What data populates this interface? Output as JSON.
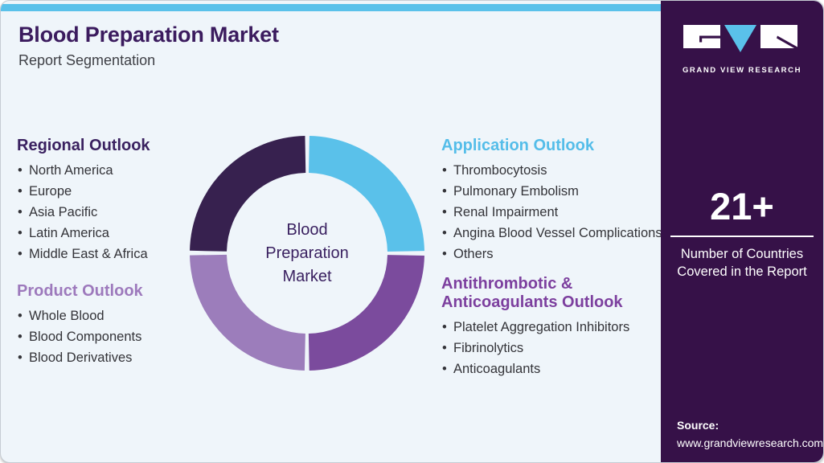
{
  "page": {
    "title": "Blood Preparation Market",
    "subtitle": "Report Segmentation"
  },
  "theme": {
    "card_bg": "#eff5fa",
    "topbar_color": "#5ac1ea",
    "sidebar_color": "#361148",
    "title_color": "#3b1b5e",
    "body_text_color": "#333338"
  },
  "sections": [
    {
      "id": "regional",
      "heading": "Regional Outlook",
      "color": "#3a2160",
      "items": [
        "North America",
        "Europe",
        "Asia Pacific",
        "Latin America",
        "Middle East & Africa"
      ]
    },
    {
      "id": "product",
      "heading": "Product Outlook",
      "color": "#9d79bc",
      "items": [
        "Whole Blood",
        "Blood Components",
        "Blood Derivatives"
      ]
    },
    {
      "id": "application",
      "heading": "Application Outlook",
      "color": "#54bde9",
      "items": [
        "Thrombocytosis",
        "Pulmonary Embolism",
        "Renal Impairment",
        "Angina Blood Vessel Complications",
        "Others"
      ]
    },
    {
      "id": "antithrombotic",
      "heading": "Antithrombotic &\nAnticoagulants Outlook",
      "color": "#7c3f9e",
      "items": [
        "Platelet Aggregation Inhibitors",
        "Fibrinolytics",
        "Anticoagulants"
      ]
    }
  ],
  "chart_data": {
    "type": "pie",
    "donut": true,
    "title": "Blood Preparation Market segmentation donut",
    "center_label": "Blood\nPreparation\nMarket",
    "center_label_color": "#3a2160",
    "legend_position": "none",
    "segments": [
      {
        "label": "Application Outlook",
        "value": 25,
        "color": "#5ac1ea"
      },
      {
        "label": "Antithrombotic & Anticoagulants Outlook",
        "value": 25,
        "color": "#7b4b9d"
      },
      {
        "label": "Product Outlook",
        "value": 25,
        "color": "#9c7dbb"
      },
      {
        "label": "Regional Outlook",
        "value": 25,
        "color": "#37214f"
      }
    ]
  },
  "sidebar": {
    "logo_caption": "GRAND VIEW RESEARCH",
    "stat_value": "21+",
    "stat_label": "Number of Countries\nCovered in the Report",
    "source_label": "Source:",
    "source_url": "www.grandviewresearch.com"
  }
}
